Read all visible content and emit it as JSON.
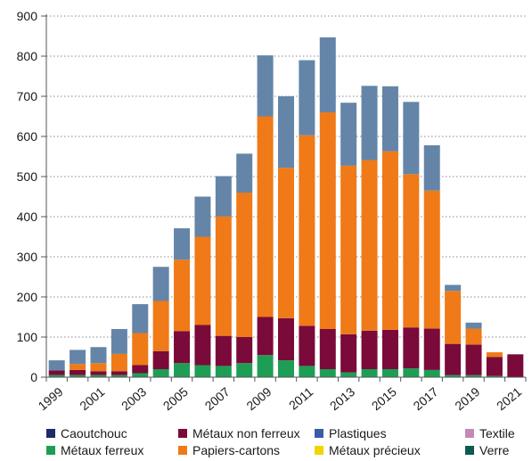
{
  "chart_data": {
    "type": "bar",
    "stacked": true,
    "x": [
      1999,
      2000,
      2001,
      2002,
      2003,
      2004,
      2005,
      2006,
      2007,
      2008,
      2009,
      2010,
      2011,
      2012,
      2013,
      2014,
      2015,
      2016,
      2017,
      2018,
      2019,
      2020,
      2021
    ],
    "x_tick_labels": [
      "1999",
      "2001",
      "2003",
      "2005",
      "2007",
      "2009",
      "2011",
      "2013",
      "2015",
      "2017",
      "2019",
      "2021"
    ],
    "y_ticks": [
      0,
      100,
      200,
      300,
      400,
      500,
      600,
      700,
      800,
      900
    ],
    "ylim": [
      0,
      900
    ],
    "grid": "horizontal-dashed",
    "series": [
      {
        "name": "Caoutchouc",
        "color": "#1f2a6b",
        "values": [
          0,
          0,
          0,
          0,
          0,
          0,
          0,
          0,
          0,
          0,
          0,
          0,
          0,
          0,
          0,
          0,
          0,
          0,
          0,
          0,
          0,
          0,
          0
        ]
      },
      {
        "name": "Métaux ferreux",
        "color": "#1e9e55",
        "values": [
          5,
          5,
          5,
          5,
          10,
          20,
          35,
          30,
          28,
          35,
          55,
          42,
          28,
          20,
          12,
          20,
          20,
          22,
          18,
          5,
          5,
          3,
          0
        ]
      },
      {
        "name": "Métaux non ferreux",
        "color": "#7a0a3a",
        "values": [
          12,
          13,
          10,
          10,
          20,
          45,
          80,
          100,
          75,
          65,
          95,
          105,
          100,
          100,
          95,
          96,
          98,
          102,
          103,
          78,
          76,
          47,
          57
        ]
      },
      {
        "name": "Papiers-cartons",
        "color": "#ef7a17",
        "values": [
          0,
          15,
          20,
          43,
          80,
          125,
          178,
          220,
          298,
          360,
          500,
          375,
          475,
          540,
          420,
          425,
          445,
          382,
          344,
          132,
          40,
          12,
          0
        ]
      },
      {
        "name": "Plastiques",
        "color": "#3b5ba9",
        "values": [
          0,
          0,
          0,
          0,
          0,
          0,
          0,
          0,
          0,
          0,
          0,
          0,
          0,
          0,
          0,
          0,
          0,
          0,
          0,
          0,
          0,
          0,
          0
        ]
      },
      {
        "name": "Métaux précieux",
        "color": "#f2d500",
        "values": [
          0,
          0,
          0,
          0,
          0,
          0,
          0,
          0,
          0,
          0,
          0,
          0,
          0,
          0,
          0,
          0,
          0,
          0,
          0,
          0,
          0,
          0,
          0
        ]
      },
      {
        "name": "Textile",
        "color": "#c48ab5",
        "values": [
          0,
          0,
          0,
          0,
          0,
          0,
          0,
          0,
          0,
          0,
          0,
          0,
          0,
          0,
          0,
          0,
          0,
          0,
          0,
          0,
          0,
          0,
          0
        ]
      },
      {
        "name": "Verre",
        "color": "#0d5a4f",
        "values": [
          0,
          0,
          0,
          0,
          0,
          0,
          0,
          0,
          0,
          0,
          0,
          0,
          0,
          0,
          0,
          0,
          0,
          0,
          0,
          0,
          0,
          0,
          0
        ]
      },
      {
        "name": "",
        "color": "#6485a8",
        "values": [
          25,
          35,
          40,
          62,
          72,
          85,
          78,
          100,
          100,
          97,
          152,
          178,
          187,
          187,
          157,
          185,
          162,
          180,
          113,
          15,
          15,
          0,
          0
        ]
      }
    ],
    "legend": {
      "placement": "bottom",
      "entries": [
        "Caoutchouc",
        "Métaux non ferreux",
        "Plastiques",
        "Textile",
        "Métaux ferreux",
        "Papiers-cartons",
        "Métaux précieux",
        "Verre"
      ]
    }
  }
}
